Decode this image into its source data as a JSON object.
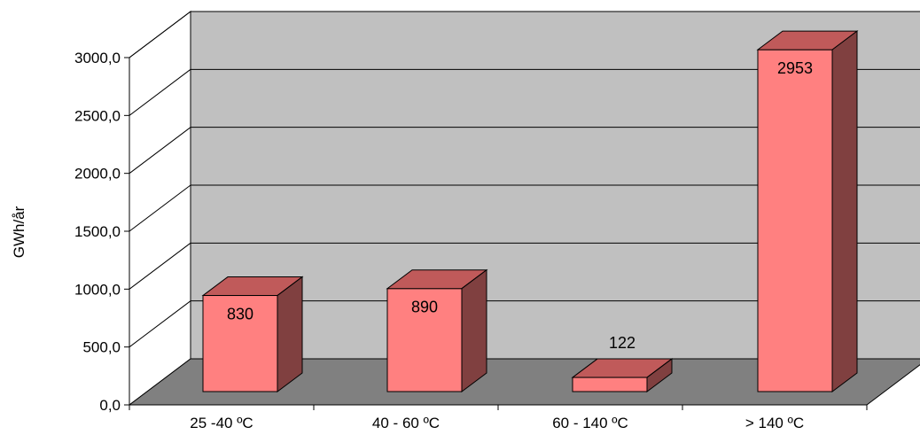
{
  "chart_data": {
    "type": "bar",
    "categories": [
      "25 -40 ºC",
      "40 - 60 ºC",
      "60 - 140 ºC",
      "> 140 ºC"
    ],
    "values": [
      830,
      890,
      122,
      2953
    ],
    "data_labels": [
      "830",
      "890",
      "122",
      "2953"
    ],
    "ylabel": "GWh/år",
    "ylim": [
      0,
      3000
    ],
    "yticks": [
      0,
      500,
      1000,
      1500,
      2000,
      2500,
      3000
    ],
    "ytick_labels": [
      "0,0",
      "500,0",
      "1000,0",
      "1500,0",
      "2000,0",
      "2500,0",
      "3000,0"
    ],
    "grid": true,
    "style": "3d-column",
    "colors": {
      "bar_front": "#ff8080",
      "bar_top": "#c05a5a",
      "bar_side": "#804040",
      "back_wall": "#c0c0c0",
      "floor": "#808080",
      "side_wall": "#ffffff",
      "grid": "#000000"
    }
  }
}
